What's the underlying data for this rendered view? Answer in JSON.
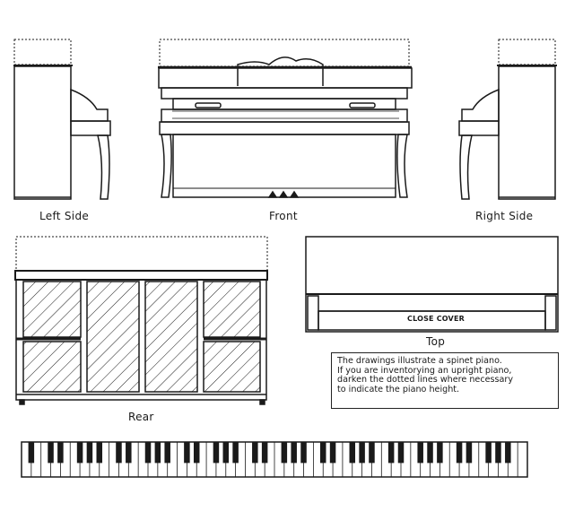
{
  "views": {
    "left_side": "Left Side",
    "front": "Front",
    "right_side": "Right Side",
    "rear": "Rear",
    "top": "Top"
  },
  "top_view": {
    "cover_label": "CLOSE COVER"
  },
  "note": {
    "lines": [
      "The drawings illustrate a spinet piano.",
      "If you are inventorying an upright piano,",
      "darken the dotted lines where necessary",
      "to indicate the piano height."
    ]
  },
  "keyboard": {
    "white_keys": 52
  },
  "colors": {
    "ink": "#1a1a1a",
    "paper": "#ffffff"
  }
}
